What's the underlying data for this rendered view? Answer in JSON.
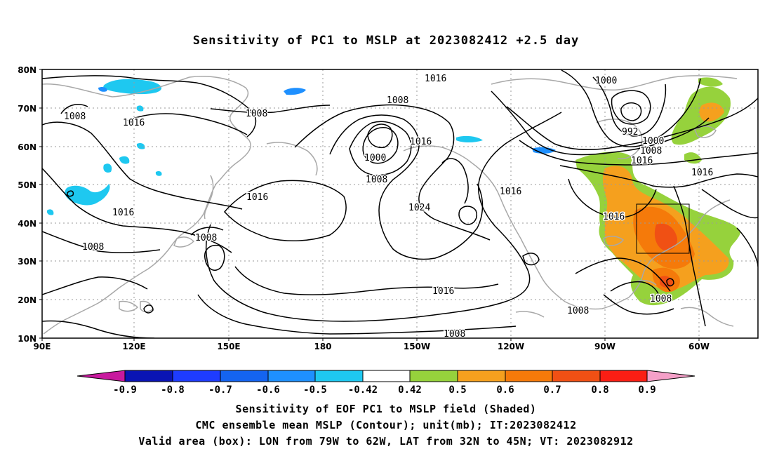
{
  "title": "Sensitivity of PC1 to MSLP at 2023082412 +2.5 day",
  "map": {
    "projection": "cylindrical equidistant",
    "lon_range": [
      "90E",
      "50W"
    ],
    "lat_range": [
      "10N",
      "80N"
    ],
    "grid": "dotted",
    "lon_ticks": [
      "90E",
      "120E",
      "150E",
      "180",
      "150W",
      "120W",
      "90W",
      "60W"
    ],
    "lat_ticks": [
      "10N",
      "20N",
      "30N",
      "40N",
      "50N",
      "60N",
      "70N",
      "80N"
    ],
    "valid_area_box": {
      "lon": [
        "79W",
        "62W"
      ],
      "lat": [
        "32N",
        "45N"
      ]
    },
    "contour_labels": [
      "1016",
      "1008",
      "1008",
      "1016",
      "1016",
      "1008",
      "1008",
      "1016",
      "1008",
      "1000",
      "1008",
      "1016",
      "1024",
      "1016",
      "1000",
      "992",
      "1000",
      "1008",
      "1016",
      "1016",
      "1016",
      "1016",
      "1008",
      "1008",
      "1008"
    ],
    "colors": {
      "coast": "#a8a8a8",
      "contour": "#000000",
      "grid": "#9a9a9a"
    }
  },
  "colorbar": {
    "labels": [
      "-0.9",
      "-0.8",
      "-0.7",
      "-0.6",
      "-0.5",
      "-0.42",
      "0.42",
      "0.5",
      "0.6",
      "0.7",
      "0.8",
      "0.9"
    ],
    "colors": [
      "#c8199e",
      "#0a14b4",
      "#1e3cff",
      "#1464f0",
      "#1e90ff",
      "#1ec8f0",
      "#ffffff",
      "#96d23c",
      "#f5a01e",
      "#f57a0a",
      "#f05014",
      "#fa1e14",
      "#f5a0c8"
    ]
  },
  "footer": {
    "line1": "Sensitivity of EOF PC1 to MSLP field (Shaded)",
    "line2": "CMC ensemble mean MSLP (Contour); unit(mb); IT:2023082412",
    "line3": "Valid area (box): LON from 79W to 62W, LAT from 32N to 45N; VT: 2023082912"
  }
}
